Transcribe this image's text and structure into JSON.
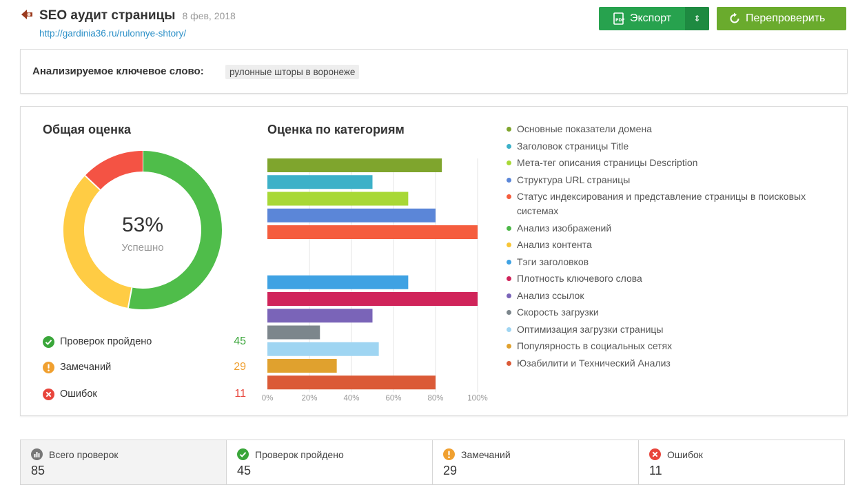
{
  "header": {
    "title": "SEO аудит страницы",
    "date": "8 фев, 2018",
    "url": "http://gardinia36.ru/rulonnye-shtory/",
    "export_label": "Экспорт",
    "recheck_label": "Перепроверить"
  },
  "keyword": {
    "label": "Анализируемое ключевое слово:",
    "value": "рулонные шторы в воронеже"
  },
  "overall": {
    "title": "Общая оценка",
    "percent": "53%",
    "status": "Успешно",
    "segments": [
      {
        "name": "passed",
        "value": 45,
        "color": "#4fbd4a"
      },
      {
        "name": "warnings",
        "value": 29,
        "color": "#ffcc44"
      },
      {
        "name": "errors",
        "value": 11,
        "color": "#f45344"
      }
    ],
    "rows": [
      {
        "label": "Проверок пройдено",
        "value": "45"
      },
      {
        "label": "Замечаний",
        "value": "29"
      },
      {
        "label": "Ошибок",
        "value": "11"
      }
    ]
  },
  "categories_title": "Оценка по категориям",
  "legend": [
    "Основные показатели домена",
    "Заголовок страницы Title",
    "Мета-тег описания страницы Description",
    "Структура URL страницы",
    "Статус индексирования и представление страницы в поисковых системах",
    "Анализ изображений",
    "Анализ контента",
    "Тэги заголовков",
    "Плотность ключевого слова",
    "Анализ ссылок",
    "Скорость загрузки",
    "Оптимизация загрузки страницы",
    "Популярность в социальных сетях",
    "Юзабилити и Технический Анализ"
  ],
  "chart_data": {
    "type": "bar",
    "orientation": "horizontal",
    "categories": [
      "Основные показатели домена",
      "Заголовок страницы Title",
      "Мета-тег описания страницы Description",
      "Структура URL страницы",
      "Статус индексирования и представление страницы в поисковых системах",
      "Анализ изображений",
      "Анализ контента",
      "Тэги заголовков",
      "Плотность ключевого слова",
      "Анализ ссылок",
      "Скорость загрузки",
      "Оптимизация загрузки страницы",
      "Популярность в социальных сетях",
      "Юзабилити и Технический Анализ"
    ],
    "values": [
      83,
      50,
      67,
      80,
      100,
      0,
      0,
      67,
      100,
      50,
      25,
      53,
      33,
      80
    ],
    "colors": [
      "#7fa52d",
      "#3db1c8",
      "#a8d836",
      "#5b86d8",
      "#f55d3e",
      "#4db848",
      "#f8c535",
      "#3fa2e3",
      "#d0245a",
      "#7a64b8",
      "#7c868c",
      "#9fd5f2",
      "#e0a12e",
      "#db5a37"
    ],
    "xlim": [
      0,
      100
    ],
    "xticks": [
      "0%",
      "20%",
      "40%",
      "60%",
      "80%",
      "100%"
    ],
    "grid": true,
    "legend_position": "right"
  },
  "stats": [
    {
      "label": "Всего проверок",
      "value": "85"
    },
    {
      "label": "Проверок пройдено",
      "value": "45"
    },
    {
      "label": "Замечаний",
      "value": "29"
    },
    {
      "label": "Ошибок",
      "value": "11"
    }
  ],
  "colors": {
    "link": "#2a8fc7",
    "export_button": "#27a24e",
    "recheck_button": "#6aab2d",
    "passed": "#3aa63a",
    "warning": "#f0a030",
    "error": "#e8453c"
  }
}
